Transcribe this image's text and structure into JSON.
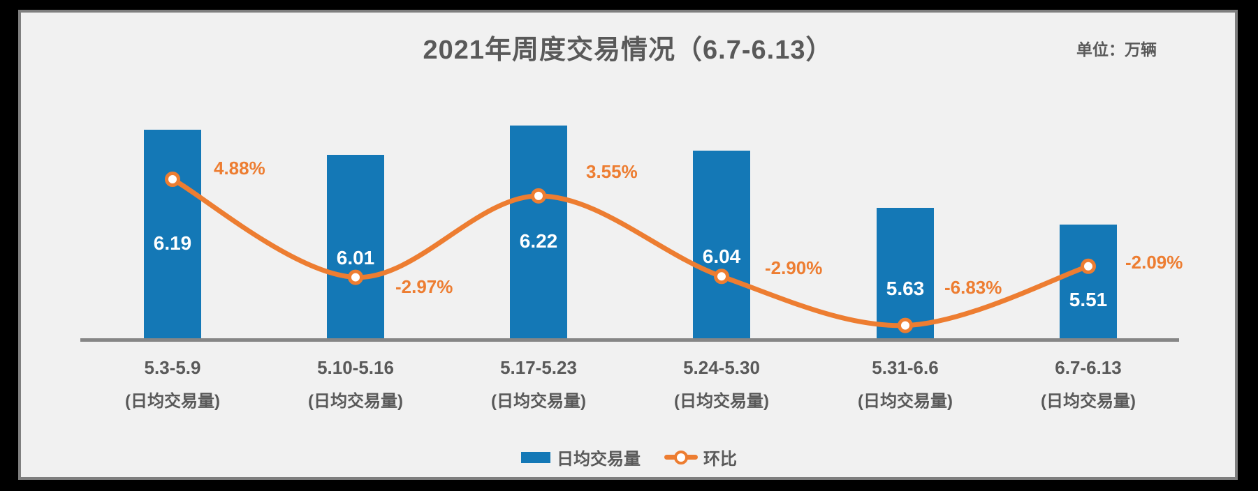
{
  "page": {
    "background": "#000000",
    "panel_background": "#F1F1F1",
    "panel_border_color": "#7F7F7F",
    "axis_color": "#868686"
  },
  "header": {
    "title": "2021年周度交易情况（6.7-6.13）",
    "unit_label": "单位：万辆"
  },
  "legend": {
    "bar_label": "日均交易量",
    "line_label": "环比"
  },
  "chart_data": {
    "type": "combo-bar-line",
    "title": "2021年周度交易情况（6.7-6.13）",
    "unit": "万辆",
    "categories": [
      "5.3-5.9",
      "5.10-5.16",
      "5.17-5.23",
      "5.24-5.30",
      "5.31-6.6",
      "6.7-6.13"
    ],
    "category_sublabel": "(日均交易量)",
    "series": [
      {
        "name": "日均交易量",
        "type": "bar",
        "color": "#1478B6",
        "values": [
          6.19,
          6.01,
          6.22,
          6.04,
          5.63,
          5.51
        ],
        "labels": [
          "6.19",
          "6.01",
          "6.22",
          "6.04",
          "5.63",
          "5.51"
        ],
        "label_color": "#FFFFFF"
      },
      {
        "name": "环比",
        "type": "line",
        "color": "#ED7D31",
        "marker": "circle-white-fill-orange-ring",
        "values_pct": [
          4.88,
          -2.97,
          3.55,
          -2.9,
          -6.83,
          -2.09
        ],
        "labels": [
          "4.88%",
          "-2.97%",
          "3.55%",
          "-2.90%",
          "-6.83%",
          "-2.09%"
        ],
        "label_color": "#ED7D31"
      }
    ],
    "legend_entries": [
      "日均交易量",
      "环比"
    ],
    "axis": {
      "baseline_visible": true,
      "y_axis_visible": false,
      "gridlines": false,
      "xlabel": "",
      "ylabel": ""
    }
  }
}
